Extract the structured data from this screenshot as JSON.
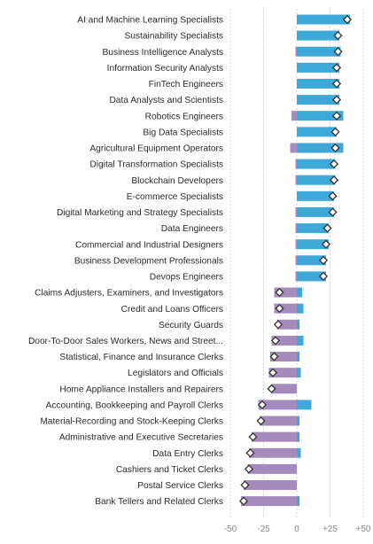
{
  "chart_data": {
    "type": "bar",
    "title": "",
    "xlabel": "",
    "ylabel": "",
    "xlim": [
      -50,
      50
    ],
    "xticks": [
      -50,
      -25,
      0,
      25,
      50
    ],
    "xtick_labels": [
      "-50",
      "-25",
      "0",
      "+25",
      "+50"
    ],
    "grid": "vertical dotted",
    "legend": "none",
    "colors": {
      "positive_bar": "#3ea8d8",
      "negative_bar": "#a58bbd",
      "marker_fill": "#ffffff",
      "marker_stroke": "#333333",
      "grid": "#bdbdbd"
    },
    "categories": [
      "AI and Machine Learning Specialists",
      "Sustainability Specialists",
      "Business Intelligence Analysts",
      "Information Security Analysts",
      "FinTech Engineers",
      "Data Analysts and Scientists",
      "Robotics Engineers",
      "Big Data Specialists",
      "Agricultural Equipment Operators",
      "Digital Transformation Specialists",
      "Blockchain Developers",
      "E-commerce Specialists",
      "Digital Marketing and Strategy Specialists",
      "Data Engineers",
      "Commercial and Industrial Designers",
      "Business Development Professionals",
      "Devops Engineers",
      "Claims Adjusters, Examiners, and Investigators",
      "Credit and Loans Officers",
      "Security Guards",
      "Door-To-Door Sales Workers, News and Street...",
      "Statistical, Finance and Insurance Clerks",
      "Legislators and Officials",
      "Home Appliance Installers and Repairers",
      "Accounting, Bookkeeping and Payroll Clerks",
      "Material-Recording and Stock-Keeping Clerks",
      "Administrative and Executive Secretaries",
      "Data Entry Clerks",
      "Cashiers and Ticket Clerks",
      "Postal Service Clerks",
      "Bank Tellers and Related Clerks"
    ],
    "series": [
      {
        "marker": "bar",
        "values": [
          40,
          32,
          33,
          32,
          32,
          32,
          35,
          30,
          35,
          29,
          29,
          28,
          28,
          24,
          24,
          22,
          22,
          4,
          5,
          2,
          5,
          2,
          3,
          -29,
          11,
          2,
          2,
          3,
          0,
          0,
          2
        ]
      },
      {
        "marker": "diamond",
        "values": [
          38,
          31,
          31,
          30,
          30,
          30,
          30,
          29,
          29,
          28,
          28,
          27,
          27,
          23,
          22,
          20,
          20,
          -13,
          -13,
          -14,
          -16,
          -17,
          -18,
          -19,
          -26,
          -27,
          -33,
          -35,
          -36,
          -39,
          -40
        ]
      }
    ],
    "bar_start": [
      0,
      0,
      -1,
      0,
      0,
      0,
      -4,
      0,
      -5,
      -1,
      -1,
      0,
      -1,
      -1,
      -1,
      -1,
      -1,
      -17,
      -17,
      -15,
      -19,
      -20,
      -21,
      null,
      -29,
      -28,
      -34,
      -36,
      -37,
      -40,
      -42
    ]
  }
}
